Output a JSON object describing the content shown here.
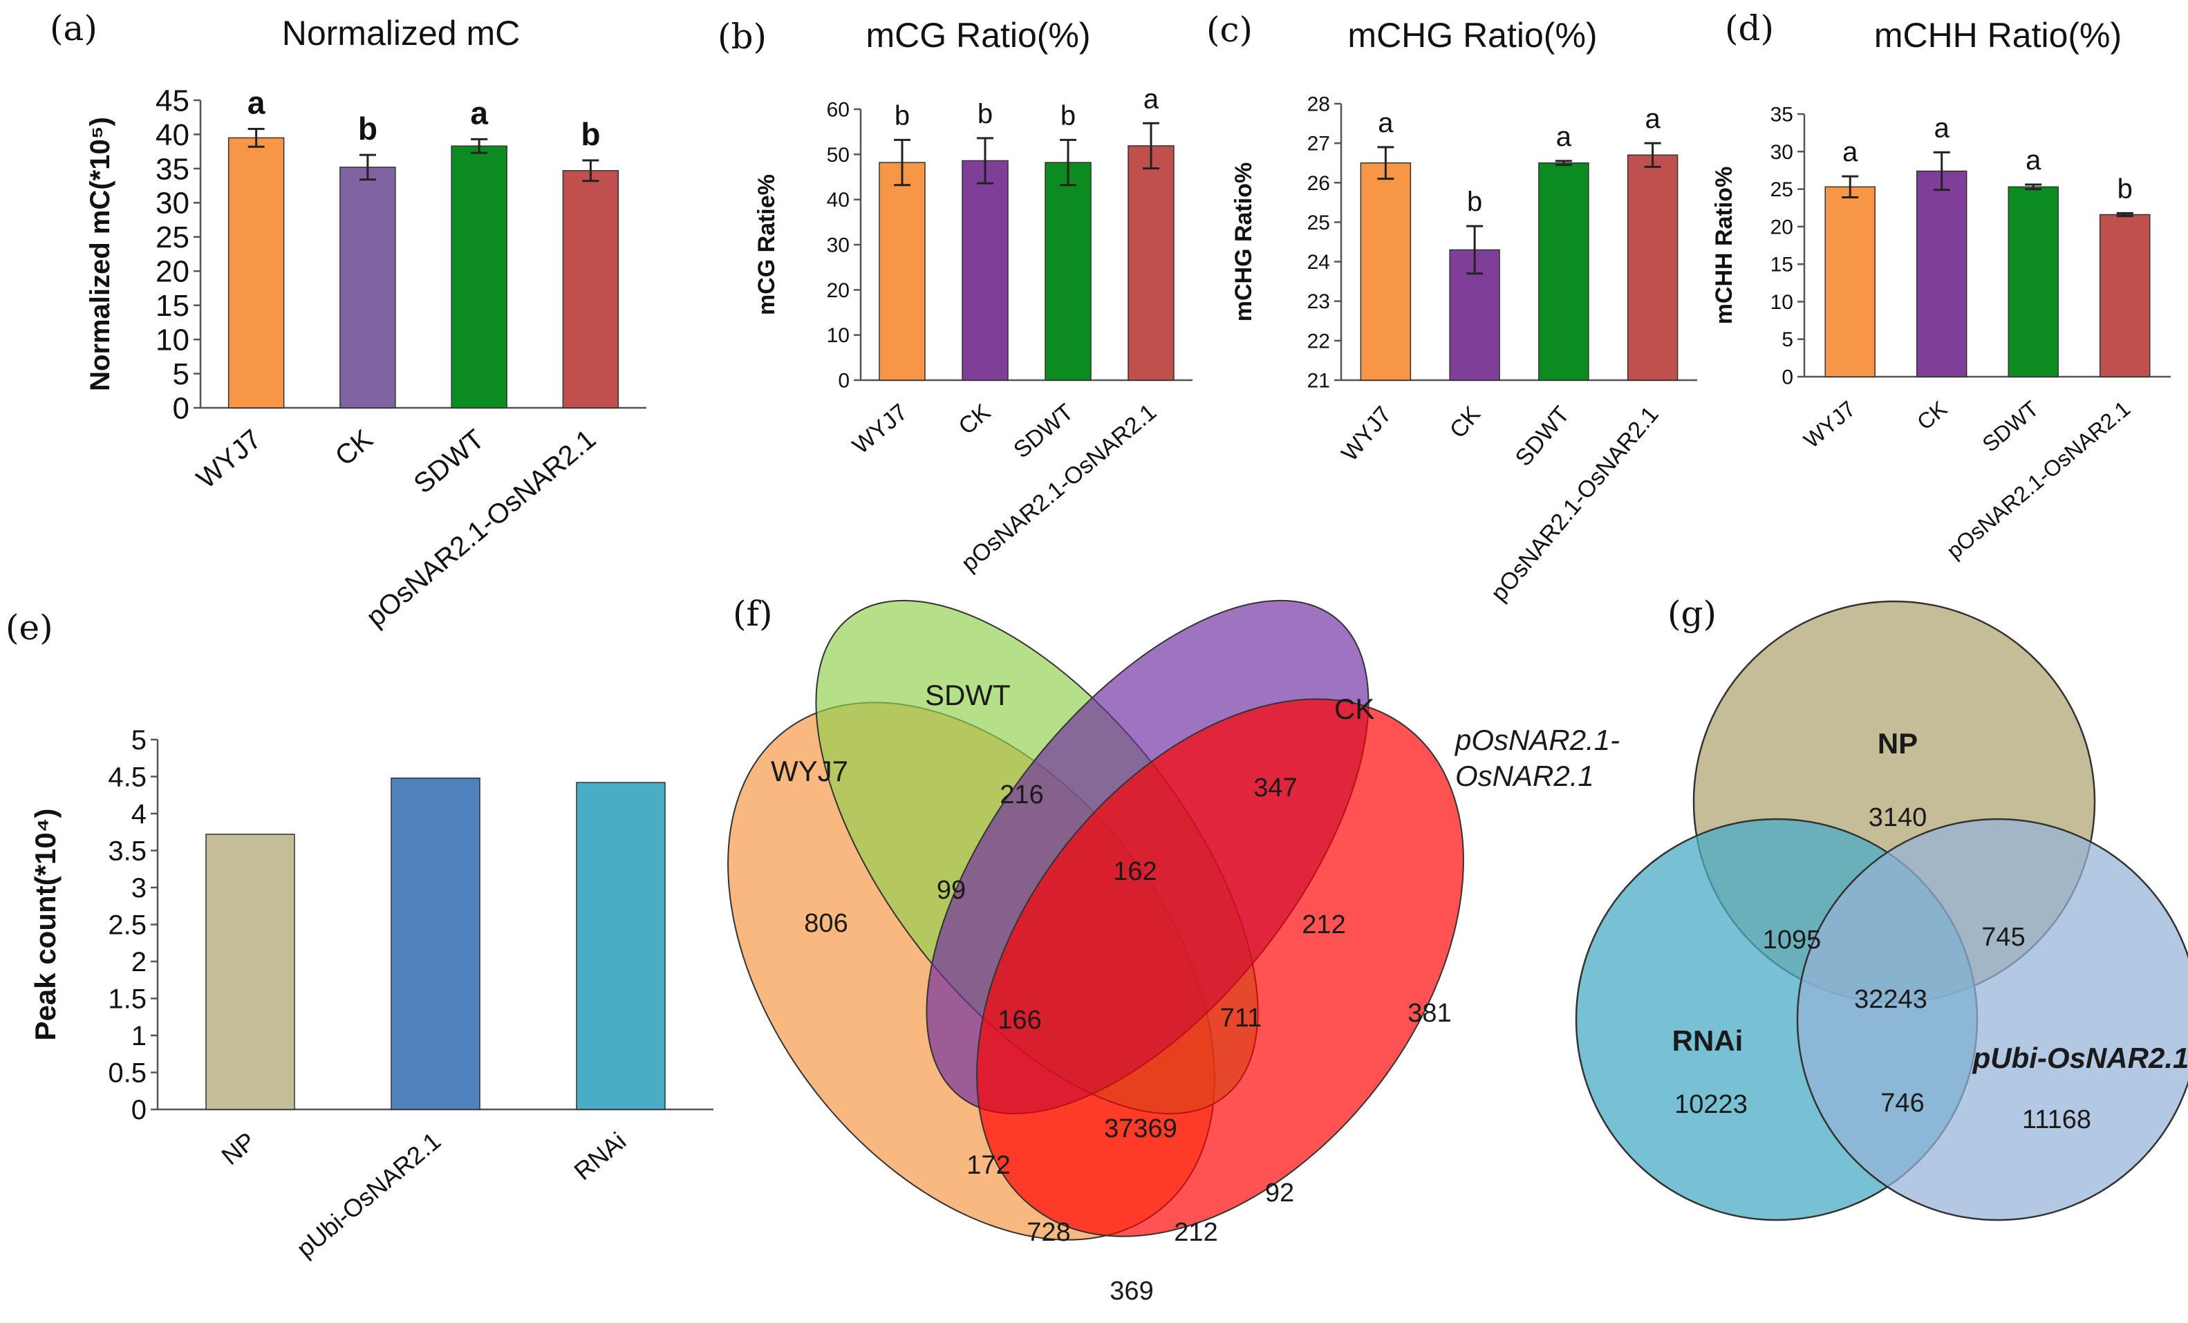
{
  "panel_letters": [
    "(a)",
    "(b)",
    "(c)",
    "(d)",
    "(e)",
    "(f)",
    "(g)"
  ],
  "colors": {
    "orange": "#F79646",
    "purple_light": "#8064A2",
    "purple": "#7F3F98",
    "green": "#0C8B21",
    "red": "#C0504D",
    "khaki": "#C4BD97",
    "blue": "#4F81BD",
    "teal": "#4BACC6"
  },
  "chart_data": [
    {
      "id": "a",
      "type": "bar",
      "title": "Normalized mC",
      "ylabel": "Normalized mC(*10⁵)",
      "categories": [
        "WYJ7",
        "CK",
        "SDWT",
        "pOsNAR2.1-OsNAR2.1"
      ],
      "values": [
        39.5,
        35.2,
        38.3,
        34.7
      ],
      "errors": [
        1.3,
        1.8,
        1.0,
        1.5
      ],
      "significance": [
        "a",
        "b",
        "a",
        "b"
      ],
      "ylim": [
        0,
        45
      ],
      "yticks": [
        0,
        5,
        10,
        15,
        20,
        25,
        30,
        35,
        40,
        45
      ]
    },
    {
      "id": "b",
      "type": "bar",
      "title": "mCG Ratio(%)",
      "ylabel": "mCG Ratie%",
      "categories": [
        "WYJ7",
        "CK",
        "SDWT",
        "pOsNAR2.1-OsNAR2.1"
      ],
      "values": [
        48.2,
        48.6,
        48.2,
        51.9
      ],
      "errors": [
        5.0,
        5.0,
        5.0,
        5.0
      ],
      "significance": [
        "b",
        "b",
        "b",
        "a"
      ],
      "ylim": [
        0,
        60
      ],
      "yticks": [
        0,
        10,
        20,
        30,
        40,
        50,
        60
      ]
    },
    {
      "id": "c",
      "type": "bar",
      "title": "mCHG Ratio(%)",
      "ylabel": "mCHG Ratio%",
      "categories": [
        "WYJ7",
        "CK",
        "SDWT",
        "pOsNAR2.1-OsNAR2.1"
      ],
      "values": [
        26.5,
        24.3,
        26.5,
        26.7
      ],
      "errors": [
        0.4,
        0.6,
        0.05,
        0.3
      ],
      "significance": [
        "a",
        "b",
        "a",
        "a"
      ],
      "ylim": [
        21,
        28
      ],
      "yticks": [
        21,
        22,
        23,
        24,
        25,
        26,
        27,
        28
      ]
    },
    {
      "id": "d",
      "type": "bar",
      "title": "mCHH Ratio(%)",
      "ylabel": "mCHH Ratio%",
      "categories": [
        "WYJ7",
        "CK",
        "SDWT",
        "pOsNAR2.1-OsNAR2.1"
      ],
      "values": [
        25.3,
        27.4,
        25.3,
        21.6
      ],
      "errors": [
        1.4,
        2.5,
        0.3,
        0.2
      ],
      "significance": [
        "a",
        "a",
        "a",
        "b"
      ],
      "ylim": [
        0,
        35
      ],
      "yticks": [
        0,
        5,
        10,
        15,
        20,
        25,
        30,
        35
      ]
    },
    {
      "id": "e",
      "type": "bar",
      "title": "",
      "ylabel": "Peak count(*10⁴)",
      "categories": [
        "NP",
        "pUbi-OsNAR2.1",
        "RNAi"
      ],
      "values": [
        3.72,
        4.48,
        4.42
      ],
      "ylim": [
        0,
        5
      ],
      "yticks": [
        0,
        0.5,
        1,
        1.5,
        2,
        2.5,
        3,
        3.5,
        4,
        4.5,
        5
      ]
    },
    {
      "id": "f",
      "type": "venn",
      "sets": [
        "WYJ7",
        "SDWT",
        "CK",
        "pOsNAR2.1-OsNAR2.1"
      ],
      "set_label_lines": [
        "WYJ7",
        "SDWT",
        "CK",
        "pOsNAR2.1-",
        "OsNAR2.1"
      ],
      "regions": [
        "806",
        "216",
        "347",
        "381",
        "99",
        "162",
        "212",
        "166",
        "711",
        "37369",
        "172",
        "92",
        "728",
        "212",
        "369"
      ]
    },
    {
      "id": "g",
      "type": "venn",
      "sets": [
        "NP",
        "RNAi",
        "pUbi-OsNAR2.1"
      ],
      "regions": [
        "3140",
        "10223",
        "11168",
        "1095",
        "745",
        "746",
        "32243"
      ]
    }
  ]
}
